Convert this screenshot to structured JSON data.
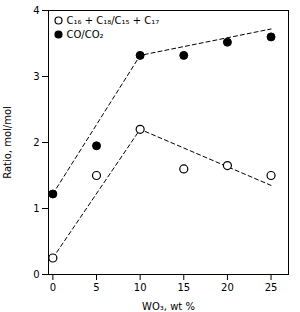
{
  "chart_data": {
    "type": "scatter",
    "xlabel": "WO₃, wt %",
    "ylabel": "Ratio, mol/mol",
    "xlim": [
      -0.5,
      27
    ],
    "ylim": [
      0,
      4
    ],
    "xticks": [
      0,
      5,
      10,
      15,
      20,
      25
    ],
    "yticks": [
      0,
      1,
      2,
      3,
      4
    ],
    "grid": false,
    "legend": "upper left",
    "series": [
      {
        "name": "C₁₆ + C₁₈/C₁₅ + C₁₇",
        "color": "black",
        "marker": "open",
        "x": [
          0,
          5,
          10,
          15,
          20,
          25
        ],
        "values": [
          0.25,
          1.5,
          2.2,
          1.6,
          1.65,
          1.5
        ],
        "trend": {
          "x": [
            0,
            10,
            25
          ],
          "values": [
            0.25,
            2.2,
            1.35
          ],
          "line_style": "dashed"
        }
      },
      {
        "name": "CO/CO₂",
        "color": "black",
        "marker": "filled",
        "x": [
          0,
          5,
          10,
          15,
          20,
          25
        ],
        "values": [
          1.22,
          1.95,
          3.32,
          3.32,
          3.52,
          3.6
        ],
        "trend": {
          "x": [
            0,
            10,
            25
          ],
          "values": [
            1.22,
            3.32,
            3.72
          ],
          "line_style": "dashed"
        }
      }
    ]
  }
}
